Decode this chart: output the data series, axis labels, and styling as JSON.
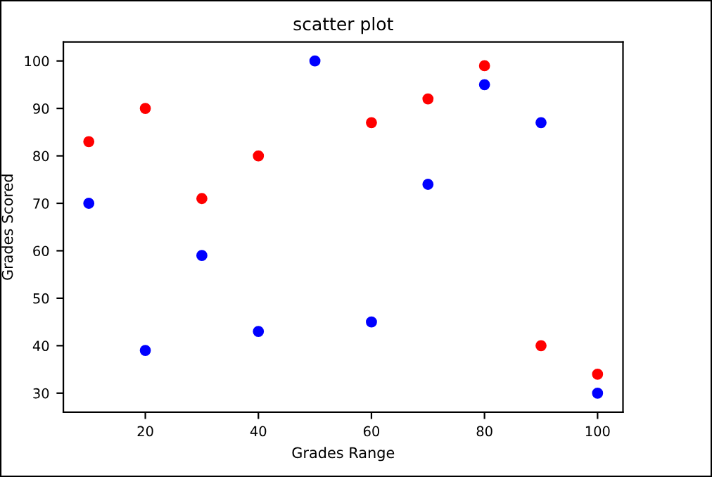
{
  "chart_data": {
    "type": "scatter",
    "title": "scatter plot",
    "xlabel": "Grades Range",
    "ylabel": "Grades Scored",
    "series": [
      {
        "color": "#ff0000",
        "x": [
          10,
          20,
          30,
          40,
          60,
          70,
          80,
          90,
          100
        ],
        "values": [
          83,
          90,
          71,
          80,
          87,
          92,
          99,
          40,
          34
        ]
      },
      {
        "color": "#0000ff",
        "x": [
          10,
          20,
          30,
          40,
          50,
          60,
          70,
          80,
          90,
          100
        ],
        "values": [
          70,
          39,
          59,
          43,
          100,
          45,
          74,
          95,
          87,
          30
        ]
      }
    ],
    "xlim": [
      5.5,
      104.5
    ],
    "xticks": [
      20,
      40,
      60,
      80,
      100
    ],
    "ylim": [
      26,
      104
    ],
    "yticks": [
      30,
      40,
      50,
      60,
      70,
      80,
      90,
      100
    ],
    "marker": "circle",
    "grid": false
  }
}
